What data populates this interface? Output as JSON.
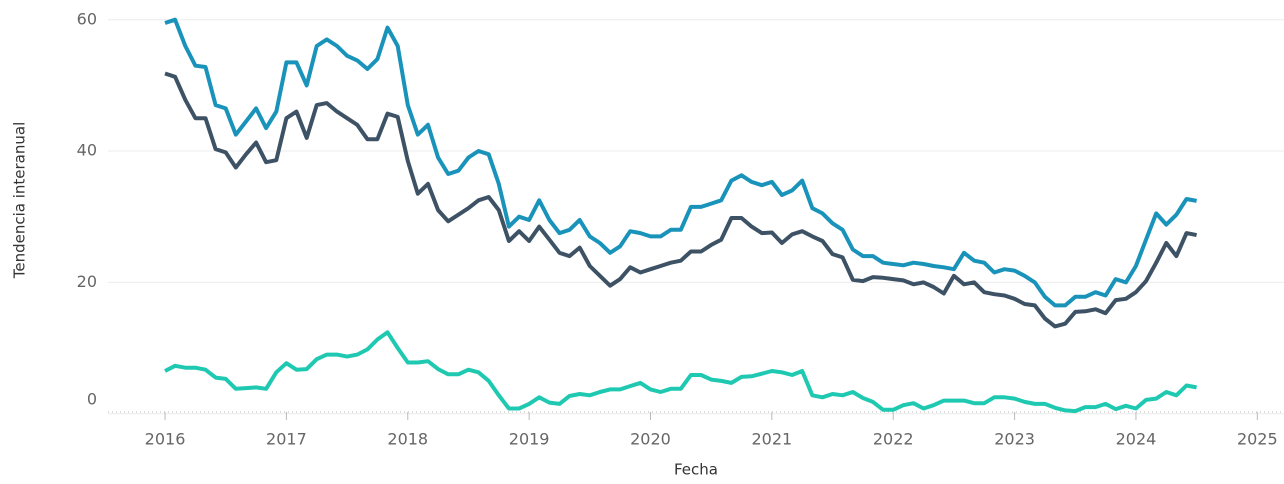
{
  "chart_data": {
    "type": "line",
    "x_label": "Fecha",
    "y_label": "Tendencia interanual",
    "x": [
      2016.0,
      2016.083,
      2016.167,
      2016.25,
      2016.333,
      2016.417,
      2016.5,
      2016.583,
      2016.667,
      2016.75,
      2016.833,
      2016.917,
      2017.0,
      2017.083,
      2017.167,
      2017.25,
      2017.333,
      2017.417,
      2017.5,
      2017.583,
      2017.667,
      2017.75,
      2017.833,
      2017.917,
      2018.0,
      2018.083,
      2018.167,
      2018.25,
      2018.333,
      2018.417,
      2018.5,
      2018.583,
      2018.667,
      2018.75,
      2018.833,
      2018.917,
      2019.0,
      2019.083,
      2019.167,
      2019.25,
      2019.333,
      2019.417,
      2019.5,
      2019.583,
      2019.667,
      2019.75,
      2019.833,
      2019.917,
      2020.0,
      2020.083,
      2020.167,
      2020.25,
      2020.333,
      2020.417,
      2020.5,
      2020.583,
      2020.667,
      2020.75,
      2020.833,
      2020.917,
      2021.0,
      2021.083,
      2021.167,
      2021.25,
      2021.333,
      2021.417,
      2021.5,
      2021.583,
      2021.667,
      2021.75,
      2021.833,
      2021.917,
      2022.0,
      2022.083,
      2022.167,
      2022.25,
      2022.333,
      2022.417,
      2022.5,
      2022.583,
      2022.667,
      2022.75,
      2022.833,
      2022.917,
      2023.0,
      2023.083,
      2023.167,
      2023.25,
      2023.333,
      2023.417,
      2023.5,
      2023.583,
      2023.667,
      2023.75,
      2023.833,
      2023.917,
      2024.0,
      2024.083,
      2024.167,
      2024.25,
      2024.333,
      2024.417,
      2024.5
    ],
    "series": [
      {
        "color": "#1a93bb",
        "values": [
          59.5,
          60,
          56,
          53,
          52.8,
          47,
          46.5,
          42.5,
          44.5,
          46.5,
          43.5,
          46,
          53.5,
          53.5,
          50,
          56,
          57,
          56,
          54.5,
          53.8,
          52.5,
          54,
          58.8,
          56,
          47,
          42.5,
          44,
          39,
          36.5,
          37,
          39,
          40,
          39.5,
          35,
          28.5,
          30,
          29.5,
          32.5,
          29.5,
          27.5,
          28,
          29.5,
          27,
          26,
          24.5,
          25.5,
          27.8,
          27.5,
          27,
          27,
          28,
          28,
          31.5,
          31.5,
          32,
          32.5,
          35.5,
          36.3,
          35.3,
          34.8,
          35.3,
          33.3,
          34,
          35.5,
          31.3,
          30.5,
          29,
          28,
          25,
          24,
          24,
          23,
          22.8,
          22.6,
          23,
          22.8,
          22.5,
          22.3,
          22,
          24.5,
          23.3,
          23,
          21.5,
          22,
          21.8,
          21,
          20,
          17.8,
          16.5,
          16.5,
          17.8,
          17.8,
          18.5,
          18,
          20.5,
          20,
          22.5,
          26.5,
          30.5,
          28.8,
          30.3,
          32.7,
          32.4
        ]
      },
      {
        "color": "#3e5265",
        "values": [
          51.8,
          51.3,
          47.8,
          45,
          45,
          40.3,
          39.8,
          37.5,
          39.5,
          41.3,
          38.3,
          38.6,
          45,
          46,
          42,
          47,
          47.3,
          46,
          45,
          44,
          41.8,
          41.8,
          45.7,
          45.2,
          38.5,
          33.5,
          35,
          31,
          29.3,
          30.3,
          31.3,
          32.5,
          33,
          31,
          26.3,
          27.8,
          26.3,
          28.5,
          26.5,
          24.5,
          24,
          25.3,
          22.5,
          21,
          19.5,
          20.5,
          22.3,
          21.5,
          22,
          22.5,
          23,
          23.3,
          24.7,
          24.7,
          25.7,
          26.5,
          29.8,
          29.8,
          28.5,
          27.5,
          27.6,
          26,
          27.3,
          27.8,
          27,
          26.3,
          24.3,
          23.8,
          20.4,
          20.2,
          20.8,
          20.7,
          20.5,
          20.3,
          19.7,
          20,
          19.3,
          18.3,
          21,
          19.7,
          20,
          18.5,
          18.2,
          18,
          17.5,
          16.7,
          16.5,
          14.5,
          13.3,
          13.7,
          15.5,
          15.6,
          15.9,
          15.3,
          17.3,
          17.5,
          18.5,
          20.2,
          23,
          26,
          24,
          27.5,
          27.2
        ]
      },
      {
        "color": "#1fc9b1",
        "values": [
          6.5,
          7.3,
          7,
          7,
          6.7,
          5.5,
          5.3,
          3.8,
          3.9,
          4,
          3.8,
          6.3,
          7.7,
          6.7,
          6.8,
          8.3,
          9,
          9,
          8.7,
          9,
          9.8,
          11.3,
          12.4,
          10,
          7.8,
          7.8,
          8,
          6.8,
          6,
          6,
          6.7,
          6.3,
          5,
          2.8,
          0.8,
          0.8,
          1.5,
          2.5,
          1.7,
          1.5,
          2.7,
          3,
          2.8,
          3.3,
          3.7,
          3.7,
          4.2,
          4.7,
          3.7,
          3.3,
          3.8,
          3.8,
          5.9,
          5.9,
          5.2,
          5,
          4.7,
          5.6,
          5.7,
          6.1,
          6.5,
          6.3,
          5.9,
          6.5,
          2.8,
          2.5,
          3,
          2.8,
          3.3,
          2.4,
          1.8,
          0.6,
          0.6,
          1.3,
          1.6,
          0.8,
          1.3,
          2,
          2,
          2,
          1.6,
          1.6,
          2.5,
          2.5,
          2.3,
          1.8,
          1.5,
          1.5,
          0.9,
          0.5,
          0.4,
          1,
          1,
          1.5,
          0.7,
          1.2,
          0.8,
          2.1,
          2.3,
          3.3,
          2.8,
          4.3,
          4
        ]
      }
    ],
    "xlim": [
      2015.53,
      2025.22
    ],
    "xticks": [
      2016,
      2017,
      2018,
      2019,
      2020,
      2021,
      2022,
      2023,
      2024,
      2025
    ],
    "ylim": [
      -0.5,
      63
    ],
    "yticks": [
      0,
      20,
      40,
      60
    ],
    "grid": true
  }
}
